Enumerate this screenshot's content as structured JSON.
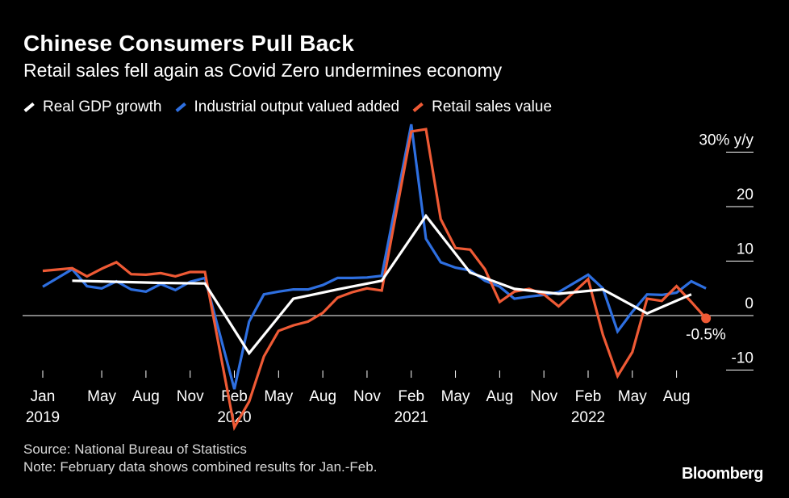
{
  "header": {
    "title": "Chinese Consumers Pull Back",
    "subtitle": "Retail sales fell again as Covid Zero undermines economy"
  },
  "footer": {
    "source": "Source: National Bureau of Statistics",
    "note": "Note: February data shows combined results for Jan.-Feb."
  },
  "brand": "Bloomberg",
  "colors": {
    "background": "#000000",
    "gdp": "#ffffff",
    "industrial": "#2e6fe0",
    "retail": "#ef5a35"
  },
  "chart_data": {
    "type": "line",
    "title": "Chinese Consumers Pull Back",
    "subtitle": "Retail sales fell again as Covid Zero undermines economy",
    "ylabel": "",
    "y_unit": "30% y/y",
    "ylim": [
      -10,
      30
    ],
    "yticks": [
      -10,
      0,
      10,
      20,
      30
    ],
    "ytick_labels": [
      "-10",
      "0",
      "10",
      "20",
      "30% y/y"
    ],
    "x_range": [
      "2019-01",
      "2022-10"
    ],
    "xticks": [
      {
        "x": "2019-01",
        "label": "Jan",
        "year": "2019"
      },
      {
        "x": "2019-05",
        "label": "May",
        "year": ""
      },
      {
        "x": "2019-08",
        "label": "Aug",
        "year": ""
      },
      {
        "x": "2019-11",
        "label": "Nov",
        "year": ""
      },
      {
        "x": "2020-02",
        "label": "Feb",
        "year": "2020"
      },
      {
        "x": "2020-05",
        "label": "May",
        "year": ""
      },
      {
        "x": "2020-08",
        "label": "Aug",
        "year": ""
      },
      {
        "x": "2020-11",
        "label": "Nov",
        "year": ""
      },
      {
        "x": "2021-02",
        "label": "Feb",
        "year": "2021"
      },
      {
        "x": "2021-05",
        "label": "May",
        "year": ""
      },
      {
        "x": "2021-08",
        "label": "Aug",
        "year": ""
      },
      {
        "x": "2021-11",
        "label": "Nov",
        "year": ""
      },
      {
        "x": "2022-02",
        "label": "Feb",
        "year": "2022"
      },
      {
        "x": "2022-05",
        "label": "May",
        "year": ""
      },
      {
        "x": "2022-08",
        "label": "Aug",
        "year": ""
      }
    ],
    "grid": false,
    "legend_position": "top-left",
    "series": [
      {
        "name": "Real GDP growth",
        "color": "#ffffff",
        "x": [
          "2019-03",
          "2019-06",
          "2019-09",
          "2019-12",
          "2020-03",
          "2020-06",
          "2020-09",
          "2020-12",
          "2021-03",
          "2021-06",
          "2021-09",
          "2021-12",
          "2022-03",
          "2022-06",
          "2022-09"
        ],
        "y": [
          6.4,
          6.2,
          6.0,
          5.9,
          -6.9,
          3.1,
          4.8,
          6.4,
          18.3,
          7.9,
          4.9,
          4.0,
          4.8,
          0.4,
          3.9
        ]
      },
      {
        "name": "Industrial output valued added",
        "color": "#2e6fe0",
        "x": [
          "2019-01",
          "2019-03",
          "2019-04",
          "2019-05",
          "2019-06",
          "2019-07",
          "2019-08",
          "2019-09",
          "2019-10",
          "2019-11",
          "2019-12",
          "2020-02",
          "2020-03",
          "2020-04",
          "2020-05",
          "2020-06",
          "2020-07",
          "2020-08",
          "2020-09",
          "2020-10",
          "2020-11",
          "2020-12",
          "2021-02",
          "2021-03",
          "2021-04",
          "2021-05",
          "2021-06",
          "2021-07",
          "2021-08",
          "2021-09",
          "2021-10",
          "2021-11",
          "2021-12",
          "2022-02",
          "2022-03",
          "2022-04",
          "2022-05",
          "2022-06",
          "2022-07",
          "2022-08",
          "2022-09",
          "2022-10"
        ],
        "y": [
          5.3,
          8.5,
          5.4,
          5.0,
          6.3,
          4.8,
          4.4,
          5.8,
          4.7,
          6.2,
          6.9,
          -13.5,
          -1.1,
          3.9,
          4.4,
          4.8,
          4.8,
          5.6,
          6.9,
          6.9,
          7.0,
          7.3,
          35.1,
          14.1,
          9.8,
          8.8,
          8.3,
          6.4,
          5.3,
          3.1,
          3.5,
          3.8,
          4.3,
          7.5,
          5.0,
          -2.9,
          0.7,
          3.9,
          3.8,
          4.2,
          6.3,
          5.0
        ]
      },
      {
        "name": "Retail sales value",
        "color": "#ef5a35",
        "x": [
          "2019-01",
          "2019-03",
          "2019-04",
          "2019-05",
          "2019-06",
          "2019-07",
          "2019-08",
          "2019-09",
          "2019-10",
          "2019-11",
          "2019-12",
          "2020-02",
          "2020-03",
          "2020-04",
          "2020-05",
          "2020-06",
          "2020-07",
          "2020-08",
          "2020-09",
          "2020-10",
          "2020-11",
          "2020-12",
          "2021-02",
          "2021-03",
          "2021-04",
          "2021-05",
          "2021-06",
          "2021-07",
          "2021-08",
          "2021-09",
          "2021-10",
          "2021-11",
          "2021-12",
          "2022-02",
          "2022-03",
          "2022-04",
          "2022-05",
          "2022-06",
          "2022-07",
          "2022-08",
          "2022-09",
          "2022-10"
        ],
        "y": [
          8.2,
          8.7,
          7.2,
          8.6,
          9.8,
          7.6,
          7.5,
          7.8,
          7.2,
          8.0,
          8.0,
          -20.5,
          -15.8,
          -7.5,
          -2.8,
          -1.8,
          -1.1,
          0.5,
          3.3,
          4.3,
          5.0,
          4.6,
          33.8,
          34.2,
          17.7,
          12.4,
          12.1,
          8.5,
          2.5,
          4.4,
          4.9,
          3.9,
          1.7,
          6.7,
          -3.5,
          -11.1,
          -6.7,
          3.1,
          2.7,
          5.4,
          2.5,
          -0.5
        ]
      }
    ],
    "annotations": [
      {
        "text": "-0.5%",
        "x": "2022-10",
        "y": -0.5,
        "series": "Retail sales value"
      }
    ]
  }
}
